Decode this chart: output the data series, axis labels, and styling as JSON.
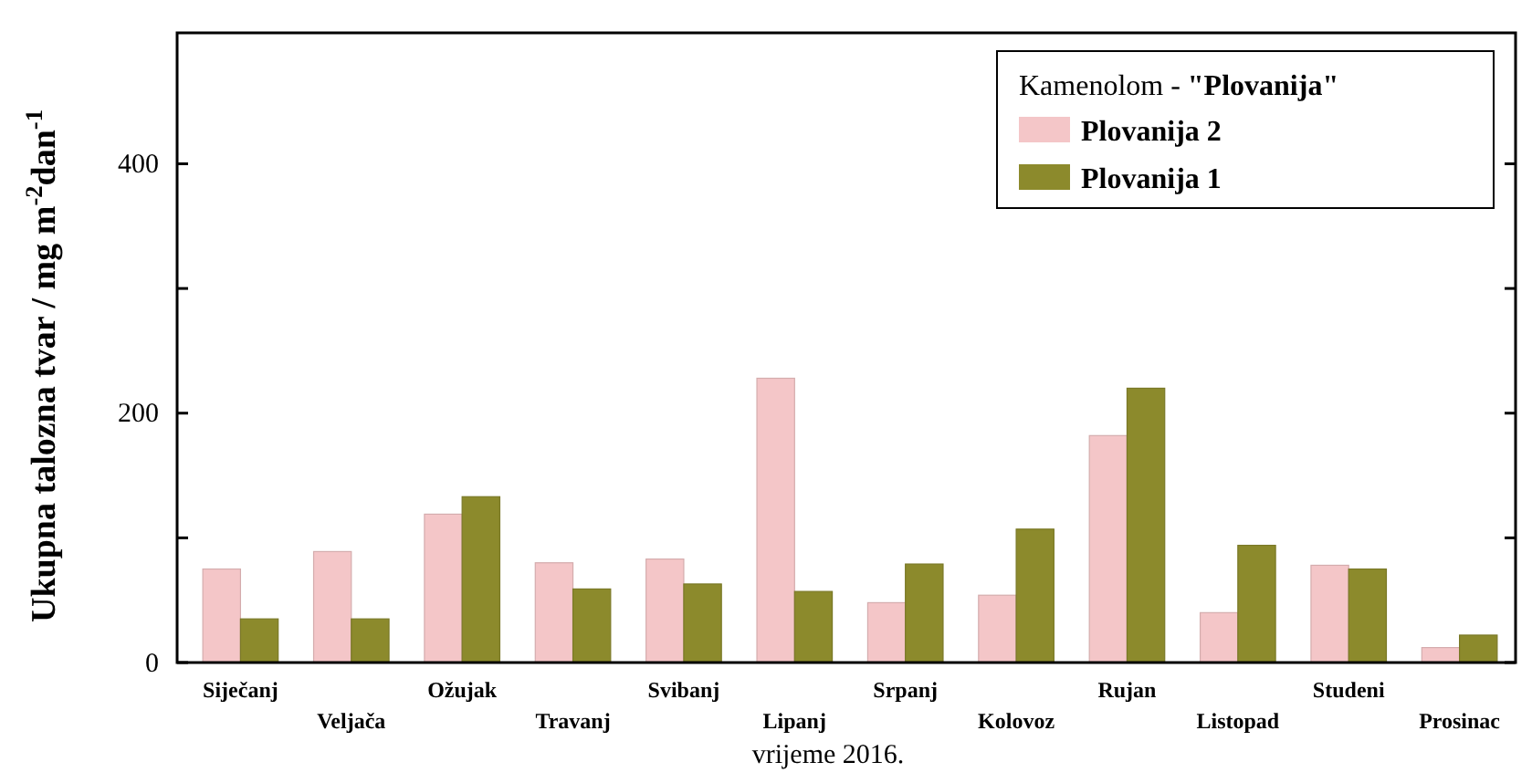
{
  "chart_data": {
    "type": "bar",
    "xlabel": "vrijeme 2016.",
    "ylabel": "Ukupna talozna tvar / mg m$^{-2}$dan$^{-1}$",
    "legend_title": "Kamenolom - \"Plovanija\"",
    "categories": [
      "Siječanj",
      "Veljača",
      "Ožujak",
      "Travanj",
      "Svibanj",
      "Lipanj",
      "Srpanj",
      "Kolovoz",
      "Rujan",
      "Listopad",
      "Studeni",
      "Prosinac"
    ],
    "series": [
      {
        "name": "Plovanija 2",
        "color": "#f4c6c8",
        "values": [
          75,
          89,
          119,
          80,
          83,
          228,
          48,
          54,
          182,
          40,
          78,
          12
        ]
      },
      {
        "name": "Plovanija 1",
        "color": "#8c8a2c",
        "values": [
          35,
          35,
          133,
          59,
          63,
          57,
          79,
          107,
          220,
          94,
          75,
          22
        ]
      }
    ],
    "ylim": [
      0,
      505
    ],
    "yticks": [
      0,
      {
        "value": 100,
        "label": null
      },
      200,
      {
        "value": 300,
        "label": null
      },
      400
    ],
    "grid": false,
    "legend": "top right"
  }
}
